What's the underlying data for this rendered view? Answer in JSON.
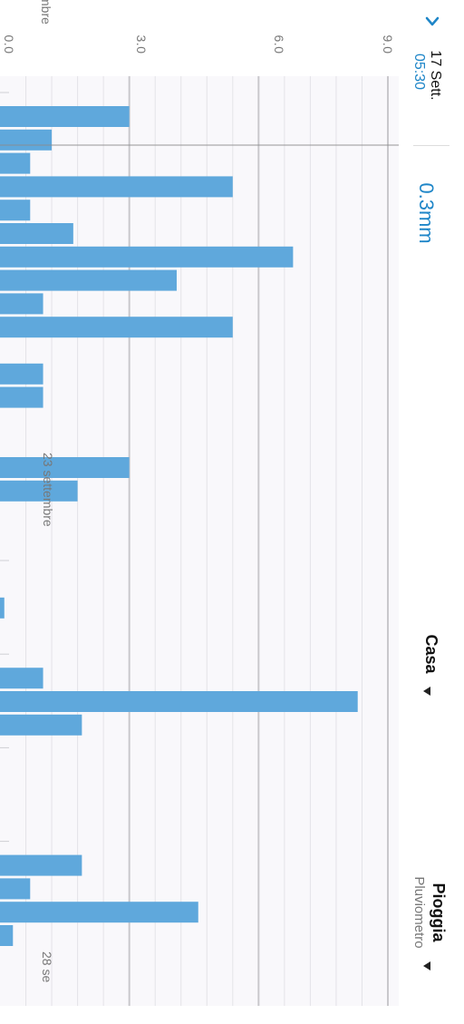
{
  "header": {
    "back_icon": "chevron-left-icon",
    "cursor_date": "17 Sett.",
    "cursor_time": "05:30",
    "reading_value": "0.3mm",
    "location": "Casa",
    "metric_title": "Pioggia",
    "metric_subtitle": "Pluviometro",
    "dropdown_icon": "caret-down-icon"
  },
  "colors": {
    "accent": "#1f86c8",
    "bar": "#5fa8dc",
    "text_primary": "#111111",
    "text_muted": "#777777"
  },
  "chart_data": {
    "type": "bar",
    "orientation": "rotated",
    "ylabel": "",
    "xlabel": "",
    "ylim": [
      0,
      9
    ],
    "yticks": [
      "0.0",
      "3.0",
      "6.0",
      "9.0"
    ],
    "grid": true,
    "date_labels": [
      "mbre",
      "23 settembre",
      "28 se"
    ],
    "values": [
      3.0,
      1.2,
      0.7,
      5.4,
      0.7,
      1.7,
      6.8,
      4.1,
      1.0,
      5.4,
      0,
      1.0,
      1.0,
      0,
      0,
      3.0,
      1.8,
      0,
      0,
      0,
      0,
      0.1,
      0,
      0,
      1.0,
      8.3,
      1.9,
      0,
      0,
      0,
      0,
      0,
      1.9,
      0.7,
      4.6,
      0.3
    ]
  }
}
